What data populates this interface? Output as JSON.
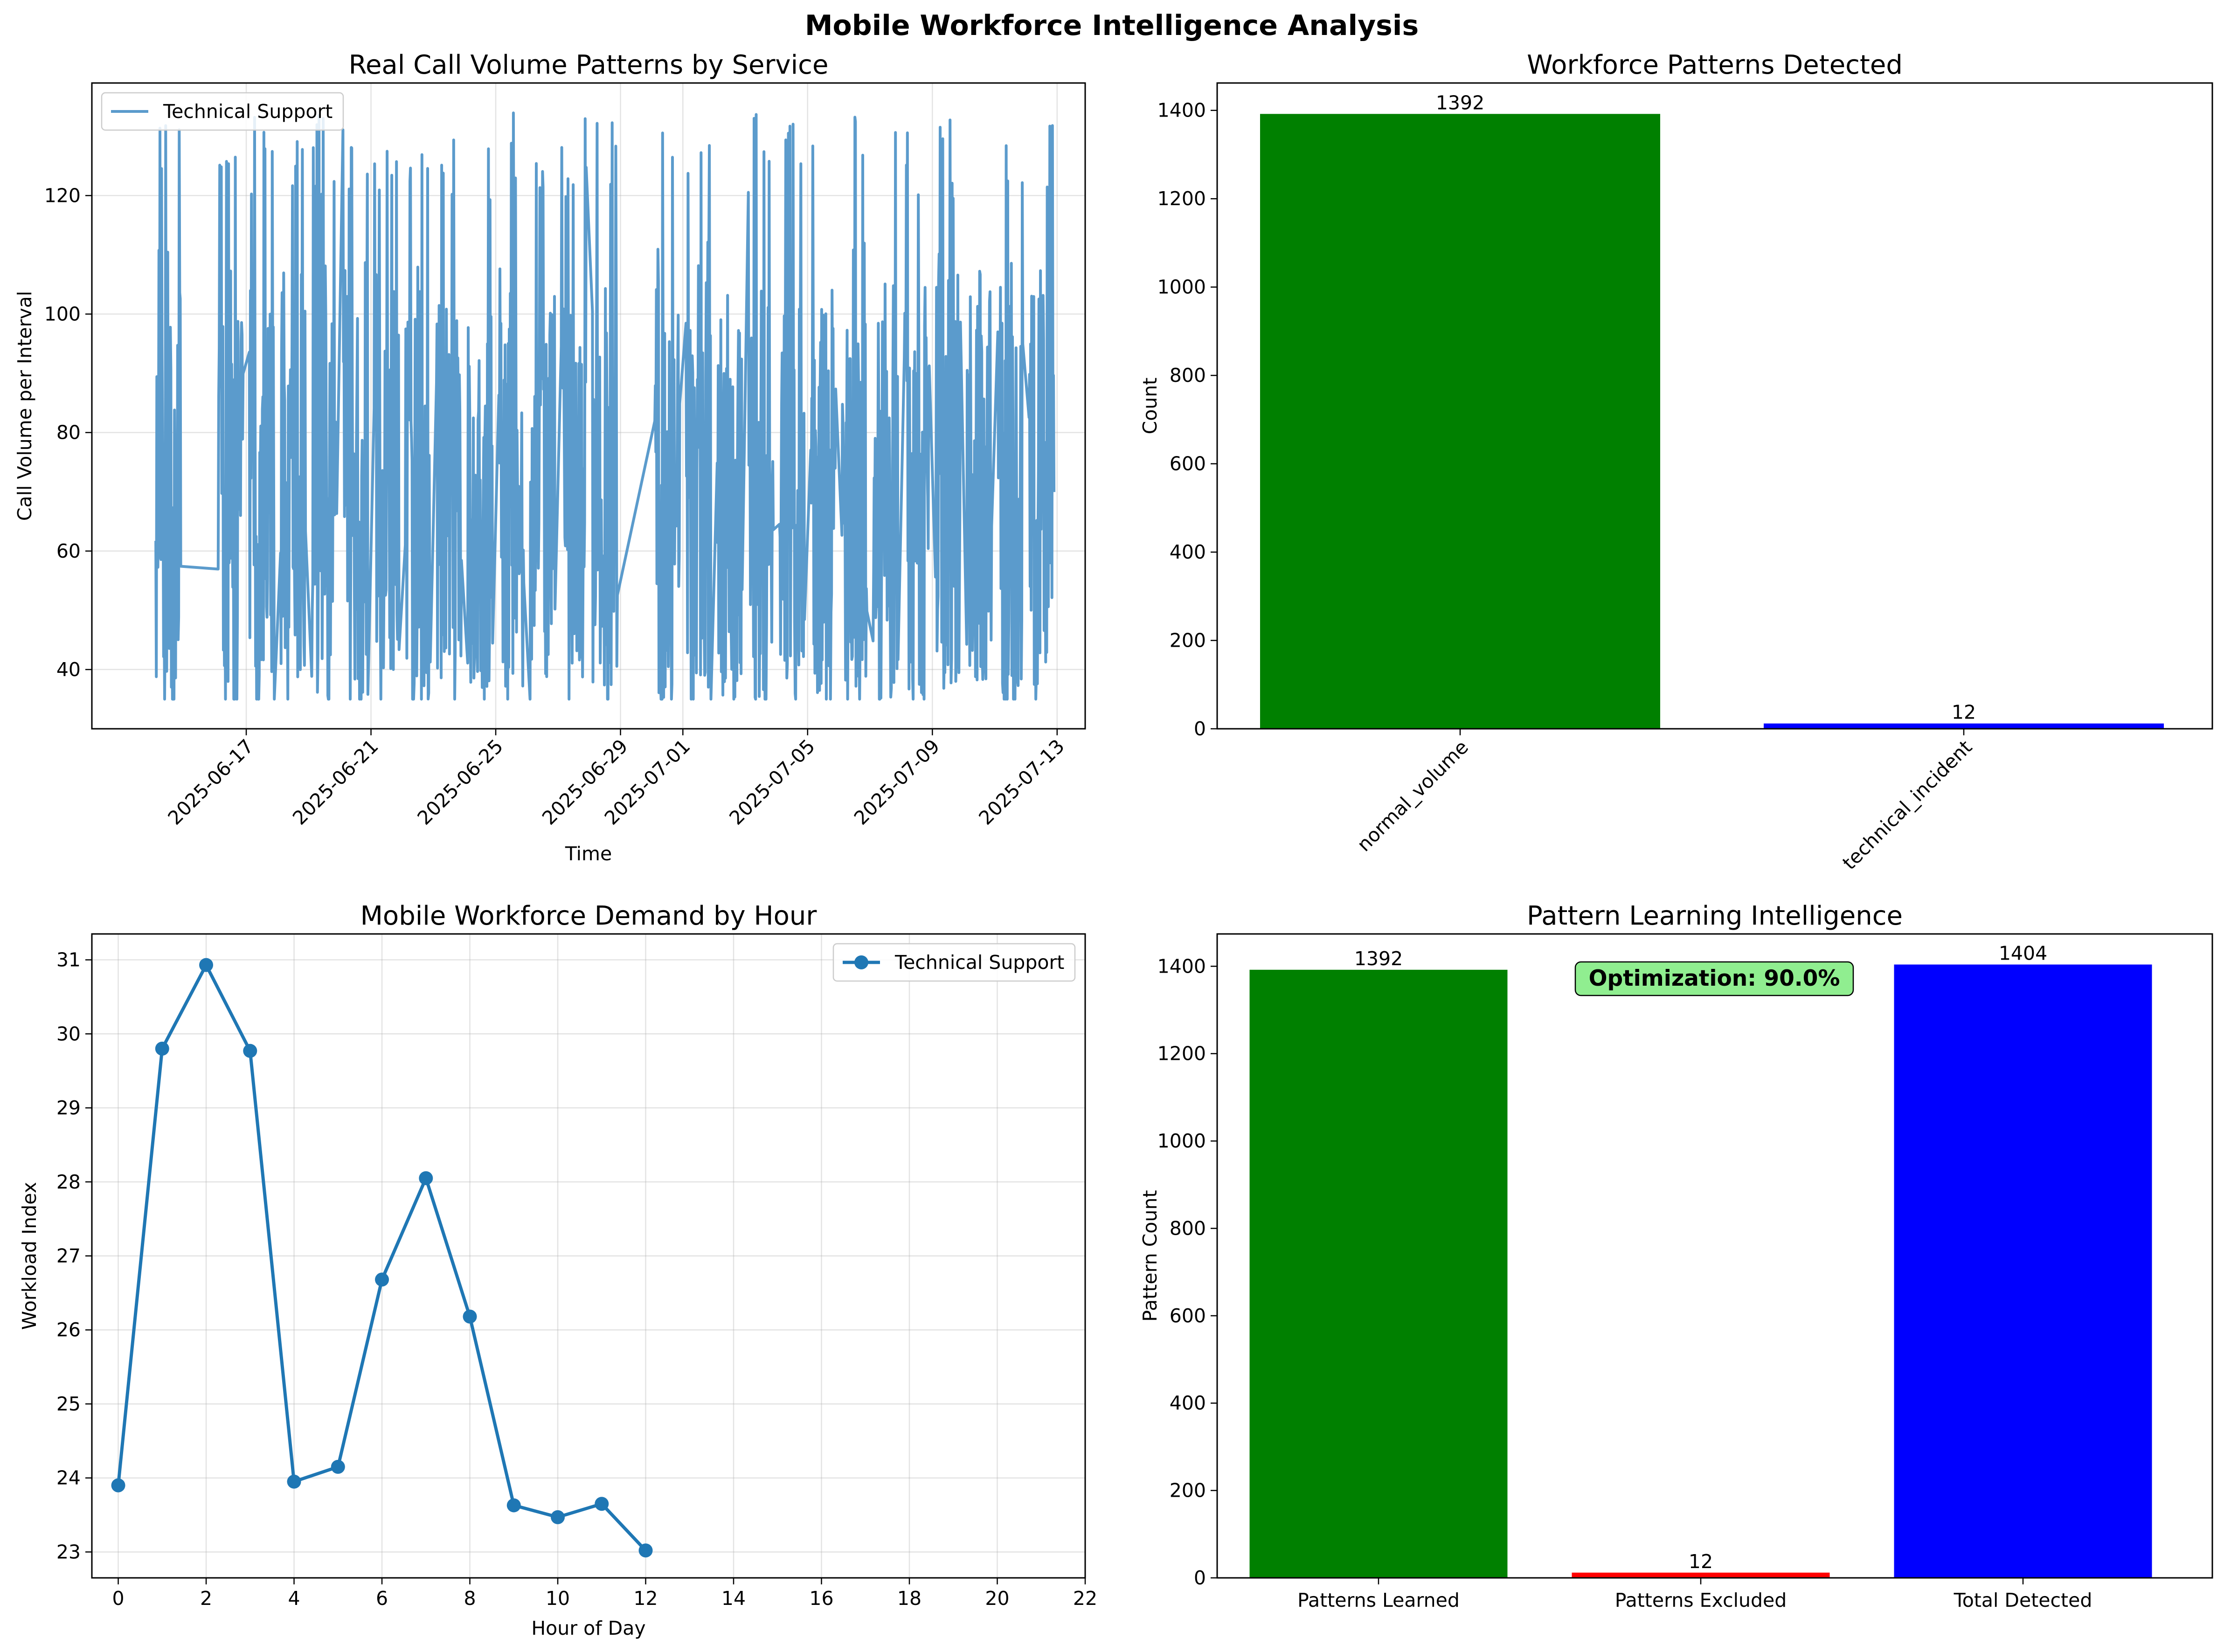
{
  "figure": {
    "title": "Mobile Workforce Intelligence Analysis"
  },
  "chart_data": [
    {
      "id": "call_volume",
      "type": "line",
      "title": "Real Call Volume Patterns by Service",
      "xlabel": "Time",
      "ylabel": "Call Volume per Interval",
      "xlim": [
        "2025-06-13",
        "2025-07-14"
      ],
      "ylim": [
        30,
        139
      ],
      "x_ticks": [
        "2025-06-17",
        "2025-06-21",
        "2025-06-25",
        "2025-06-29",
        "2025-07-01",
        "2025-07-05",
        "2025-07-09",
        "2025-07-13"
      ],
      "y_ticks": [
        40,
        60,
        80,
        100,
        120
      ],
      "grid": true,
      "legend_position": "upper-left",
      "line_color": "#5b9bcc",
      "series": [
        {
          "name": "Technical Support",
          "approx_value_range": [
            35,
            134
          ],
          "active_intervals": [
            [
              "2025-06-14",
              "2025-06-15"
            ],
            [
              "2025-06-16",
              "2025-06-17"
            ],
            [
              "2025-06-17",
              "2025-06-18"
            ],
            [
              "2025-06-18",
              "2025-06-19"
            ],
            [
              "2025-06-19",
              "2025-06-20"
            ],
            [
              "2025-06-20",
              "2025-06-21"
            ],
            [
              "2025-06-21",
              "2025-06-22"
            ],
            [
              "2025-06-22",
              "2025-06-23"
            ],
            [
              "2025-06-23",
              "2025-06-24"
            ],
            [
              "2025-06-24",
              "2025-06-25"
            ],
            [
              "2025-06-25",
              "2025-06-26"
            ],
            [
              "2025-06-26",
              "2025-06-27"
            ],
            [
              "2025-06-27",
              "2025-06-28"
            ],
            [
              "2025-06-28",
              "2025-06-29"
            ],
            [
              "2025-06-30",
              "2025-07-01"
            ],
            [
              "2025-07-01",
              "2025-07-02"
            ],
            [
              "2025-07-02",
              "2025-07-03"
            ],
            [
              "2025-07-03",
              "2025-07-04"
            ],
            [
              "2025-07-04",
              "2025-07-05"
            ],
            [
              "2025-07-05",
              "2025-07-06"
            ],
            [
              "2025-07-06",
              "2025-07-07"
            ],
            [
              "2025-07-07",
              "2025-07-08"
            ],
            [
              "2025-07-08",
              "2025-07-09"
            ],
            [
              "2025-07-09",
              "2025-07-10"
            ],
            [
              "2025-07-10",
              "2025-07-11"
            ],
            [
              "2025-07-11",
              "2025-07-12"
            ],
            [
              "2025-07-12",
              "2025-07-13"
            ]
          ]
        }
      ]
    },
    {
      "id": "patterns_detected",
      "type": "bar",
      "title": "Workforce Patterns Detected",
      "xlabel": "",
      "ylabel": "Count",
      "categories": [
        "normal_volume",
        "technical_incident"
      ],
      "values": [
        1392,
        12
      ],
      "colors": [
        "#008000",
        "#0000ff"
      ],
      "ylim": [
        0,
        1462
      ],
      "y_ticks": [
        0,
        200,
        400,
        600,
        800,
        1000,
        1200,
        1400
      ],
      "grid": false
    },
    {
      "id": "demand_by_hour",
      "type": "line",
      "title": "Mobile Workforce Demand by Hour",
      "xlabel": "Hour of Day",
      "ylabel": "Workload Index",
      "xlim": [
        -0.6,
        22
      ],
      "ylim": [
        22.65,
        31.35
      ],
      "x_ticks": [
        0,
        2,
        4,
        6,
        8,
        10,
        12,
        14,
        16,
        18,
        20,
        22
      ],
      "y_ticks": [
        23,
        24,
        25,
        26,
        27,
        28,
        29,
        30,
        31
      ],
      "grid": true,
      "legend_position": "upper-right",
      "line_color": "#1f77b4",
      "series": [
        {
          "name": "Technical Support",
          "x": [
            0,
            1,
            2,
            3,
            4,
            5,
            6,
            7,
            8,
            9,
            10,
            11,
            12
          ],
          "y": [
            23.9,
            29.8,
            30.93,
            29.77,
            23.95,
            24.15,
            26.68,
            28.05,
            26.18,
            23.63,
            23.47,
            23.65,
            23.02
          ]
        }
      ]
    },
    {
      "id": "learning_intelligence",
      "type": "bar",
      "title": "Pattern Learning Intelligence",
      "xlabel": "",
      "ylabel": "Pattern Count",
      "categories": [
        "Patterns Learned",
        "Patterns Excluded",
        "Total Detected"
      ],
      "values": [
        1392,
        12,
        1404
      ],
      "colors": [
        "#008000",
        "#ff0000",
        "#0000ff"
      ],
      "ylim": [
        0,
        1474
      ],
      "y_ticks": [
        0,
        200,
        400,
        600,
        800,
        1000,
        1200,
        1400
      ],
      "grid": false,
      "annotation": {
        "text": "Optimization: 90.0%",
        "fill": "#90ee90",
        "placement": "top-center"
      }
    }
  ]
}
